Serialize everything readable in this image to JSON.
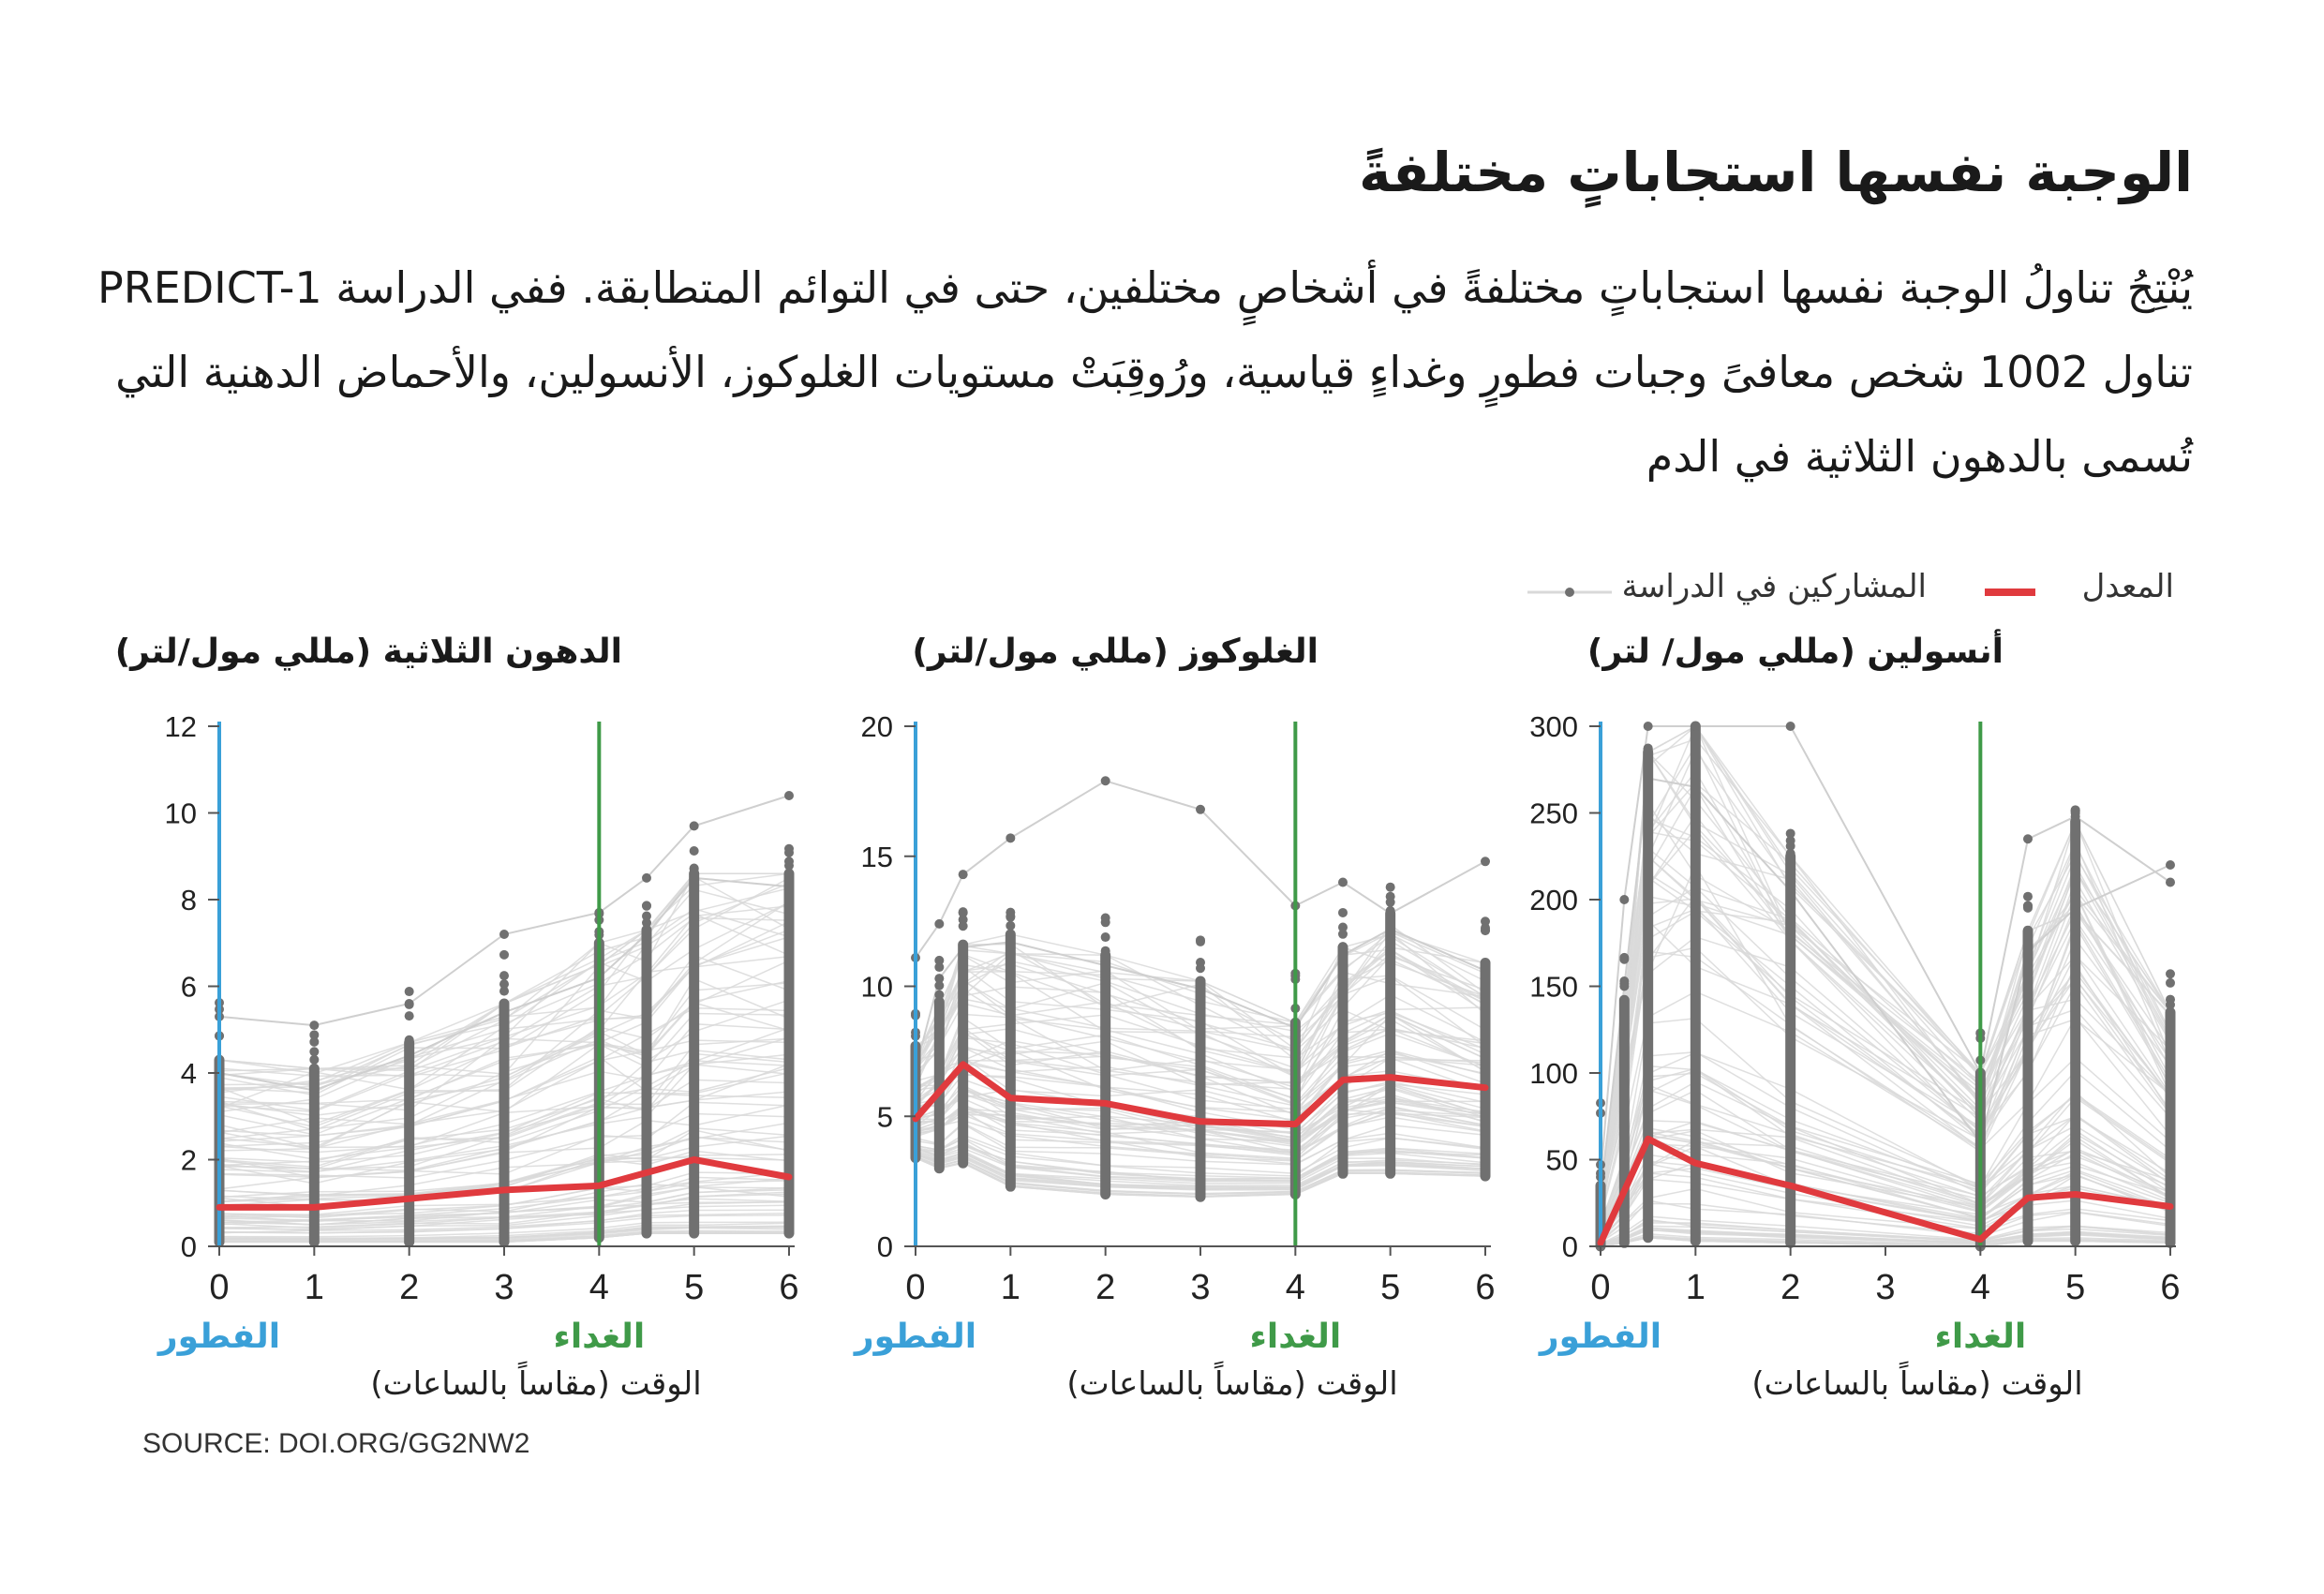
{
  "headline": "الوجبة نفسها استجاباتٍ مختلفةً",
  "intro": "يُنْتِجُ تناولُ الوجبة نفسها استجاباتٍ مختلفةً في أشخاصٍ مختلفين، حتى في التوائم المتطابقة. ففي الدراسة PREDICT-1 تناول 1002 شخص معافىً وجبات فطورٍ وغداءٍ قياسية، ورُوقِبَتْ مستويات الغلوكوز، الأنسولين، والأحماض الدهنية التي تُسمى بالدهون الثلاثية في الدم",
  "legend": {
    "average_label": "المعدل",
    "participants_label": "المشاركين في الدراسة"
  },
  "source": "SOURCE: DOI.ORG/GG2NW2",
  "colors": {
    "average": "#e03a3e",
    "breakfast": "#3aa0d8",
    "lunch": "#3f9a48",
    "points": "#707070",
    "lines": "#d9d9d9"
  },
  "chart_data": [
    {
      "type": "line",
      "title": "الدهون الثلاثية (مللي مول/لتر)",
      "xlabel": "الوقت (مقاساً بالساعات)",
      "x_ticks": [
        0,
        1,
        2,
        3,
        4,
        5,
        6
      ],
      "y_ticks": [
        0,
        2,
        4,
        6,
        8,
        10,
        12
      ],
      "xlim": [
        0,
        6
      ],
      "ylim": [
        0,
        12
      ],
      "breakfast": {
        "x": 0,
        "label": "الفطور"
      },
      "lunch": {
        "x": 4,
        "label": "الغداء"
      },
      "sample_times": [
        0,
        1,
        2,
        3,
        4,
        4.5,
        5,
        6
      ],
      "average": {
        "x": [
          0,
          1,
          2,
          3,
          4,
          5,
          6
        ],
        "y": [
          0.9,
          0.9,
          1.1,
          1.3,
          1.4,
          2.0,
          1.6
        ]
      },
      "participants_range": {
        "low": [
          0.1,
          0.1,
          0.1,
          0.1,
          0.2,
          0.3,
          0.3,
          0.3
        ],
        "high": [
          4.3,
          4.1,
          4.7,
          5.6,
          7.0,
          7.3,
          8.6,
          8.6
        ]
      },
      "outliers": [
        {
          "x": [
            0,
            1,
            2,
            3,
            4,
            4.5,
            5,
            6
          ],
          "y": [
            5.3,
            5.1,
            5.6,
            7.2,
            7.7,
            8.5,
            9.7,
            10.4
          ]
        },
        {
          "x": [
            0,
            1,
            2,
            3,
            4,
            4.5,
            5,
            6
          ],
          "y": [
            4.0,
            3.6,
            4.4,
            5.4,
            6.2,
            7.2,
            8.5,
            8.3
          ]
        }
      ]
    },
    {
      "type": "line",
      "title": "الغلوكوز (مللي مول/لتر)",
      "xlabel": "الوقت (مقاساً بالساعات)",
      "x_ticks": [
        0,
        1,
        2,
        3,
        4,
        5,
        6
      ],
      "y_ticks": [
        0,
        5,
        10,
        15,
        20
      ],
      "xlim": [
        0,
        6
      ],
      "ylim": [
        0,
        20
      ],
      "breakfast": {
        "x": 0,
        "label": "الفطور"
      },
      "lunch": {
        "x": 4,
        "label": "الغداء"
      },
      "sample_times": [
        0,
        0.25,
        0.5,
        1,
        2,
        3,
        4,
        4.5,
        5,
        6
      ],
      "average": {
        "x": [
          0,
          0.5,
          1,
          2,
          3,
          4,
          4.5,
          5,
          6
        ],
        "y": [
          4.9,
          7.0,
          5.7,
          5.5,
          4.8,
          4.7,
          6.4,
          6.5,
          6.1
        ]
      },
      "participants_range": {
        "low": [
          3.4,
          3.0,
          3.2,
          2.3,
          2.0,
          1.9,
          2.0,
          2.8,
          2.8,
          2.7
        ],
        "high": [
          7.7,
          9.4,
          11.6,
          12.0,
          11.2,
          10.2,
          8.6,
          11.5,
          12.8,
          10.9
        ]
      },
      "outliers": [
        {
          "x": [
            0,
            0.25,
            0.5,
            1,
            2,
            3,
            4,
            4.5,
            5,
            6
          ],
          "y": [
            11.1,
            12.4,
            14.3,
            15.7,
            17.9,
            16.8,
            13.1,
            14.0,
            12.8,
            14.8
          ]
        },
        {
          "x": [
            0,
            0.25,
            0.5,
            1,
            2,
            3,
            4,
            4.5,
            5,
            6
          ],
          "y": [
            6.8,
            10.3,
            11.5,
            11.7,
            10.8,
            9.9,
            8.4,
            11.2,
            12.2,
            10.6
          ]
        }
      ]
    },
    {
      "type": "line",
      "title": "أنسولين (مللي مول/ لتر)",
      "xlabel": "الوقت (مقاساً بالساعات)",
      "x_ticks": [
        0,
        1,
        2,
        3,
        4,
        5,
        6
      ],
      "y_ticks": [
        0,
        50,
        100,
        150,
        200,
        250,
        300
      ],
      "xlim": [
        0,
        6
      ],
      "ylim": [
        0,
        300
      ],
      "breakfast": {
        "x": 0,
        "label": "الفطور"
      },
      "lunch": {
        "x": 4,
        "label": "الغداء"
      },
      "sample_times": [
        0,
        0.25,
        0.5,
        1,
        2,
        4,
        4.5,
        5,
        6
      ],
      "average": {
        "x": [
          0,
          0.5,
          1,
          2,
          4,
          4.5,
          5,
          6
        ],
        "y": [
          2,
          62,
          48,
          35,
          4,
          28,
          30,
          23
        ]
      },
      "participants_range": {
        "low": [
          0,
          2,
          5,
          3,
          2,
          0,
          3,
          3,
          2
        ],
        "high": [
          35,
          142,
          285,
          300,
          225,
          100,
          182,
          245,
          135
        ]
      },
      "outliers": [
        {
          "x": [
            0,
            0.25,
            0.5,
            1,
            2,
            4,
            4.5,
            5,
            6
          ],
          "y": [
            40,
            200,
            300,
            300,
            300,
            100,
            235,
            248,
            210
          ]
        },
        {
          "x": [
            0,
            0.25,
            0.5,
            1,
            2,
            4,
            4.5,
            5,
            6
          ],
          "y": [
            30,
            150,
            270,
            265,
            205,
            60,
            170,
            195,
            220
          ]
        }
      ]
    }
  ]
}
